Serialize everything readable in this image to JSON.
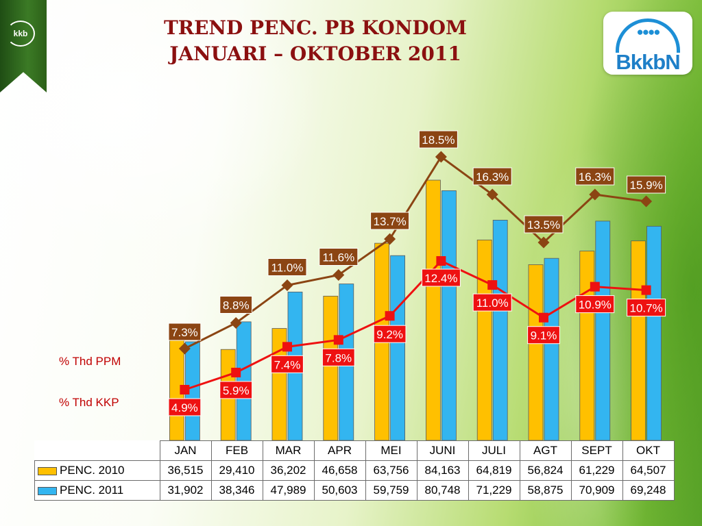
{
  "title": {
    "line1": "TREND PENC. PB KONDOM",
    "line2": "JANUARI – OKTOBER 2011"
  },
  "corner_badge": {
    "text": "kkb"
  },
  "brand": {
    "name": "BkkbN",
    "icon": "family-figures-icon"
  },
  "side_labels": {
    "ppm": "% Thd PPM",
    "kkp": "% Thd KKP"
  },
  "colors": {
    "bar2010": "#ffc000",
    "bar2011": "#33b5f0",
    "ppm": "#8b4513",
    "kkp": "#ee1111",
    "title": "#8b1010"
  },
  "chart_data": {
    "type": "bar",
    "categories": [
      "JAN",
      "FEB",
      "MAR",
      "APR",
      "MEI",
      "JUNI",
      "JULI",
      "AGT",
      "SEPT",
      "OKT"
    ],
    "series": [
      {
        "name": "PENC. 2010",
        "values": [
          36515,
          29410,
          36202,
          46658,
          63756,
          84163,
          64819,
          56824,
          61229,
          64507
        ]
      },
      {
        "name": "PENC. 2011",
        "values": [
          31902,
          38346,
          47989,
          50603,
          59759,
          80748,
          71229,
          58875,
          70909,
          69248
        ]
      }
    ],
    "lines": [
      {
        "name": "% Thd PPM",
        "values": [
          7.3,
          8.8,
          11.0,
          11.6,
          13.7,
          18.5,
          16.3,
          13.5,
          16.3,
          15.9
        ],
        "labels": [
          "7.3%",
          "8.8%",
          "11.0%",
          "11.6%",
          "13.7%",
          "18.5%",
          "16.3%",
          "13.5%",
          "16.3%",
          "15.9%"
        ]
      },
      {
        "name": "% Thd KKP",
        "values": [
          4.9,
          5.9,
          7.4,
          7.8,
          9.2,
          12.4,
          11.0,
          9.1,
          10.9,
          10.7
        ],
        "labels": [
          "4.9%",
          "5.9%",
          "7.4%",
          "7.8%",
          "9.2%",
          "12.4%",
          "11.0%",
          "9.1%",
          "10.9%",
          "10.7%"
        ]
      }
    ],
    "table": {
      "rows": [
        {
          "label": "PENC. 2010",
          "values": [
            "36,515",
            "29,410",
            "36,202",
            "46,658",
            "63,756",
            "84,163",
            "64,819",
            "56,824",
            "61,229",
            "64,507"
          ]
        },
        {
          "label": "PENC. 2011",
          "values": [
            "31,902",
            "38,346",
            "47,989",
            "50,603",
            "59,759",
            "80,748",
            "71,229",
            "58,875",
            "70,909",
            "69,248"
          ]
        }
      ]
    }
  }
}
